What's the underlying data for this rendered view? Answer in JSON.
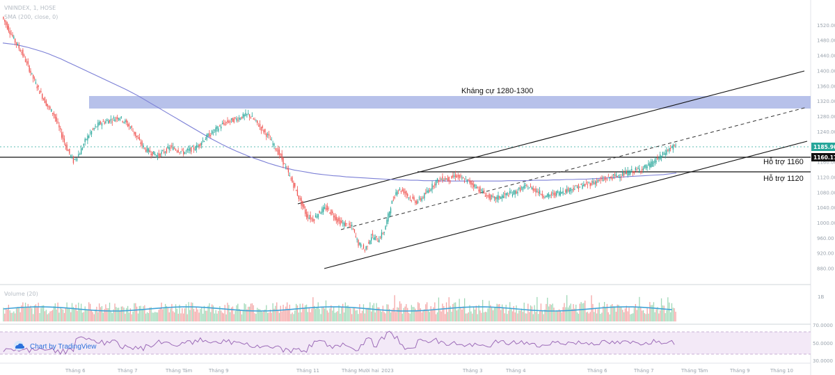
{
  "legend": {
    "symbol": "VNINDEX, 1, HOSE",
    "ma": "SMA (200, close, 0)",
    "volume": "Volume (20)"
  },
  "watermark": "Chart by TradingView",
  "annotations": {
    "resistance": "Kháng cự 1280-1300",
    "support1": "Hỗ trợ 1160",
    "support2": "Hỗ trợ 1120"
  },
  "price_tags": {
    "last": "1185.90",
    "support_line": "1160.17"
  },
  "price_axis_labels": [
    "1520.00",
    "1480.00",
    "1440.00",
    "1400.00",
    "1360.00",
    "1320.00",
    "1280.00",
    "1240.00",
    "1200.00",
    "1160.00",
    "1120.00",
    "1080.00",
    "1040.00",
    "1000.00",
    "960.00",
    "920.00",
    "880.00"
  ],
  "volume_axis_label": "1B",
  "rsi_axis_labels": [
    "70.0000",
    "50.0000",
    "30.0000"
  ],
  "time_labels": [
    "Tháng 6",
    "Tháng 7",
    "Tháng Tám",
    "Tháng 9",
    "Tháng 11",
    "Tháng Mười hai",
    "2023",
    "Tháng 3",
    "Tháng 4",
    "Tháng 6",
    "Tháng 7",
    "Tháng Tám",
    "Tháng 9",
    "Tháng 10"
  ],
  "colors": {
    "up": "#26a69a",
    "down": "#ef5350",
    "ma": "#7b7fd6",
    "zone": "#aab6e6",
    "rsi": "#9c6bb8",
    "rsi_band": "#f1e6f6",
    "vol_ma": "#3fa4d8"
  },
  "chart_data": {
    "type": "candlestick",
    "x_start": "2022-05",
    "x_end": "2023-10",
    "ylim": [
      850,
      1560
    ],
    "close": [
      1525,
      1492,
      1460,
      1432,
      1395,
      1355,
      1322,
      1290,
      1268,
      1222,
      1178,
      1145,
      1168,
      1205,
      1228,
      1244,
      1250,
      1255,
      1262,
      1248,
      1230,
      1202,
      1178,
      1168,
      1160,
      1170,
      1182,
      1176,
      1168,
      1175,
      1182,
      1200,
      1215,
      1228,
      1242,
      1250,
      1255,
      1262,
      1268,
      1252,
      1232,
      1212,
      1185,
      1158,
      1120,
      1082,
      1042,
      1002,
      992,
      1012,
      1022,
      1006,
      986,
      978,
      972,
      928,
      912,
      948,
      938,
      962,
      1028,
      1072,
      1066,
      1048,
      1038,
      1052,
      1072,
      1092,
      1100,
      1098,
      1108,
      1098,
      1092,
      1080,
      1066,
      1052,
      1046,
      1052,
      1058,
      1062,
      1072,
      1078,
      1073,
      1062,
      1052,
      1058,
      1063,
      1068,
      1073,
      1078,
      1083,
      1088,
      1093,
      1098,
      1103,
      1107,
      1112,
      1117,
      1122,
      1127,
      1135,
      1148,
      1162,
      1178,
      1186
    ],
    "sma200": [
      1456,
      1454,
      1452,
      1448,
      1444,
      1439,
      1434,
      1428,
      1421,
      1414,
      1406,
      1398,
      1390,
      1382,
      1374,
      1366,
      1358,
      1350,
      1342,
      1334,
      1325,
      1316,
      1306,
      1296,
      1286,
      1276,
      1266,
      1256,
      1246,
      1236,
      1226,
      1216,
      1206,
      1197,
      1188,
      1180,
      1172,
      1165,
      1158,
      1152,
      1146,
      1140,
      1135,
      1130,
      1126,
      1122,
      1119,
      1116,
      1113,
      1111,
      1109,
      1107,
      1106,
      1104,
      1103,
      1102,
      1101,
      1100,
      1099,
      1098,
      1097,
      1096,
      1096,
      1095,
      1095,
      1094,
      1094,
      1094,
      1093,
      1093,
      1093,
      1093,
      1093,
      1093,
      1093,
      1093,
      1093,
      1093,
      1094,
      1094,
      1094,
      1094,
      1095,
      1095,
      1095,
      1096,
      1096,
      1097,
      1097,
      1098,
      1098,
      1099,
      1100,
      1101,
      1102,
      1103,
      1104,
      1105,
      1106,
      1107,
      1108,
      1109,
      1110,
      1112,
      1114
    ],
    "resistance_zone": [
      1280,
      1300
    ],
    "support_levels": [
      1160,
      1120
    ],
    "channel": {
      "lower_start": [
        "2022-11",
        868
      ],
      "lower_end": [
        "2023-09",
        1185
      ],
      "upper_start": [
        "2022-11",
        1020
      ],
      "upper_end": [
        "2023-09",
        1385
      ],
      "mid_start": [
        "2022-11",
        945
      ],
      "mid_end": [
        "2023-09",
        1290
      ]
    },
    "title": "",
    "xlabel": "",
    "ylabel": ""
  }
}
